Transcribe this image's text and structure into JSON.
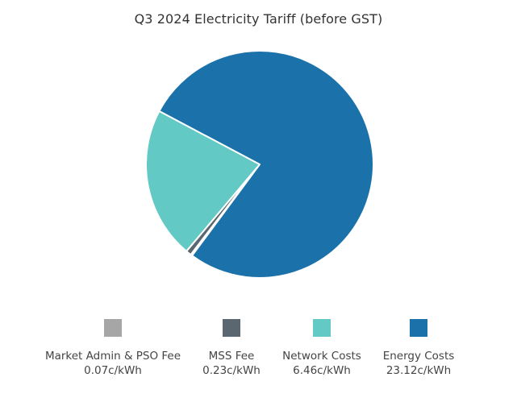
{
  "chart_data": {
    "type": "pie",
    "title": "Q3 2024 Electricity Tariff (before GST)",
    "unit": "c/kWh",
    "slices": [
      {
        "name": "Market Admin & PSO Fee",
        "value": 0.07,
        "label": "0.07c/kWh",
        "color": "#a6a6a6"
      },
      {
        "name": "MSS Fee",
        "value": 0.23,
        "label": "0.23c/kWh",
        "color": "#5b6770"
      },
      {
        "name": "Network Costs",
        "value": 6.46,
        "label": "6.46c/kWh",
        "color": "#62c9c4"
      },
      {
        "name": "Energy Costs",
        "value": 23.12,
        "label": "23.12c/kWh",
        "color": "#1b72aa"
      }
    ],
    "legend_position": "bottom"
  }
}
